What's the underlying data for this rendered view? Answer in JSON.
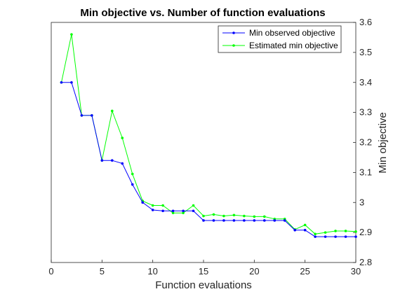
{
  "chart_data": {
    "type": "line",
    "title": "Min objective vs. Number of function evaluations",
    "xlabel": "Function evaluations",
    "ylabel": "Min objective",
    "xlim": [
      0,
      30
    ],
    "ylim": [
      2.8,
      3.6
    ],
    "y_axis_side": "right",
    "grid": false,
    "legend_position": "top-right",
    "x_ticks": [
      "0",
      "5",
      "10",
      "15",
      "20",
      "25",
      "30"
    ],
    "y_ticks": [
      "2.8",
      "2.9",
      "3",
      "3.1",
      "3.2",
      "3.3",
      "3.4",
      "3.5",
      "3.6"
    ],
    "x": [
      1,
      2,
      3,
      4,
      5,
      6,
      7,
      8,
      9,
      10,
      11,
      12,
      13,
      14,
      15,
      16,
      17,
      18,
      19,
      20,
      21,
      22,
      23,
      24,
      25,
      26,
      27,
      28,
      29,
      30
    ],
    "series": [
      {
        "name": "Min observed objective",
        "color": "#0000ff",
        "values": [
          3.4,
          3.4,
          3.29,
          3.29,
          3.14,
          3.14,
          3.13,
          3.06,
          3.0,
          2.975,
          2.972,
          2.972,
          2.972,
          2.972,
          2.94,
          2.94,
          2.94,
          2.94,
          2.94,
          2.94,
          2.94,
          2.94,
          2.94,
          2.908,
          2.908,
          2.886,
          2.886,
          2.886,
          2.886,
          2.886
        ]
      },
      {
        "name": "Estimated min objective",
        "color": "#00ff00",
        "values": [
          3.4,
          3.56,
          3.29,
          3.29,
          3.14,
          3.305,
          3.215,
          3.095,
          3.005,
          2.99,
          2.99,
          2.965,
          2.965,
          2.99,
          2.955,
          2.96,
          2.955,
          2.958,
          2.955,
          2.953,
          2.953,
          2.945,
          2.945,
          2.91,
          2.925,
          2.895,
          2.9,
          2.905,
          2.905,
          2.903
        ]
      }
    ]
  }
}
